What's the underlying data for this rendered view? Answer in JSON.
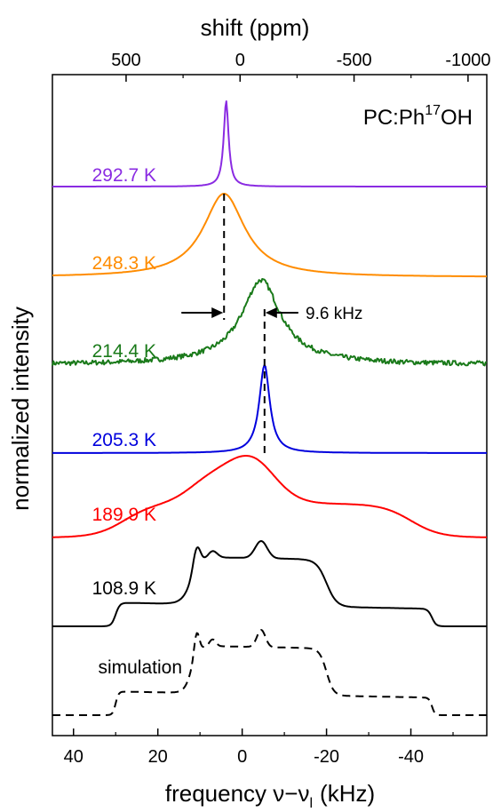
{
  "chart_data": {
    "type": "line",
    "xlabel_bottom": "frequency ν−ν",
    "xlabel_bottom_subscript": "l",
    "xlabel_bottom_unit": "(kHz)",
    "xlabel_top": "shift (ppm)",
    "ylabel": "normalized intensity",
    "sample_label_main": "PC:Ph",
    "sample_label_sup": "17",
    "sample_label_end": "OH",
    "xlim": [
      45,
      -58
    ],
    "bottom_ticks": [
      40,
      20,
      0,
      -20,
      -40
    ],
    "bottom_tick_labels": [
      "40",
      "20",
      "0",
      "-20",
      "-40"
    ],
    "top_ticks_ppm": [
      500,
      0,
      -500,
      -1000
    ],
    "top_tick_labels": [
      "500",
      "0",
      "-500",
      "-1000"
    ],
    "ppm_per_khz": 18.5,
    "ppm_zero_at_khz": 0.5,
    "annotation": "9.6 kHz",
    "annotation_positions_khz": [
      4.3,
      -5.3
    ],
    "series": [
      {
        "name": "292.7 K",
        "color": "#8a2be2",
        "kind": "lorentz",
        "center": 3.8,
        "width": 0.7,
        "amp": 1.0
      },
      {
        "name": "248.3 K",
        "color": "#ff8c00",
        "kind": "lorentz",
        "center": 4.3,
        "width": 6.0,
        "amp": 1.0
      },
      {
        "name": "214.4 K",
        "color": "#1a7a1a",
        "kind": "lorentz",
        "center": -4.5,
        "width": 5.5,
        "amp": 1.0,
        "noise": 0.03
      },
      {
        "name": "205.3 K",
        "color": "#0000dd",
        "kind": "lorentz",
        "center": -5.3,
        "width": 1.5,
        "amp": 1.0
      },
      {
        "name": "189.9 K",
        "color": "#ff0000",
        "kind": "powder_broad"
      },
      {
        "name": "108.9 K",
        "color": "#000000",
        "kind": "powder"
      },
      {
        "name": "simulation",
        "color": "#000000",
        "kind": "powder_sim",
        "dashed": true
      }
    ]
  }
}
